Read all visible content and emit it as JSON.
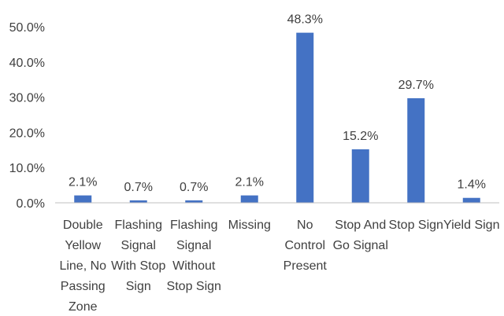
{
  "chart_data": {
    "type": "bar",
    "title": "",
    "xlabel": "",
    "ylabel": "",
    "ylim": [
      0,
      50
    ],
    "y_ticks": [
      "0.0%",
      "10.0%",
      "20.0%",
      "30.0%",
      "40.0%",
      "50.0%"
    ],
    "y_tick_values": [
      0,
      10,
      20,
      30,
      40,
      50
    ],
    "grid": false,
    "legend": "none",
    "bar_color": "#4472c4",
    "categories": [
      "Double Yellow Line, No Passing Zone",
      "Flashing Signal With Stop Sign",
      "Flashing Signal Without Stop Sign",
      "Missing",
      "No Control Present",
      "Stop And Go Signal",
      "Stop Sign",
      "Yield Sign"
    ],
    "category_lines": [
      [
        "Double",
        "Yellow",
        "Line, No",
        "Passing",
        "Zone"
      ],
      [
        "Flashing",
        "Signal",
        "With Stop",
        "Sign"
      ],
      [
        "Flashing",
        "Signal",
        "Without",
        "Stop Sign"
      ],
      [
        "Missing"
      ],
      [
        "No",
        "Control",
        "Present"
      ],
      [
        "Stop And",
        "Go Signal"
      ],
      [
        "Stop Sign"
      ],
      [
        "Yield Sign"
      ]
    ],
    "values": [
      2.1,
      0.7,
      0.7,
      2.1,
      48.3,
      15.2,
      29.7,
      1.4
    ],
    "data_labels": [
      "2.1%",
      "0.7%",
      "0.7%",
      "2.1%",
      "48.3%",
      "15.2%",
      "29.7%",
      "1.4%"
    ]
  }
}
